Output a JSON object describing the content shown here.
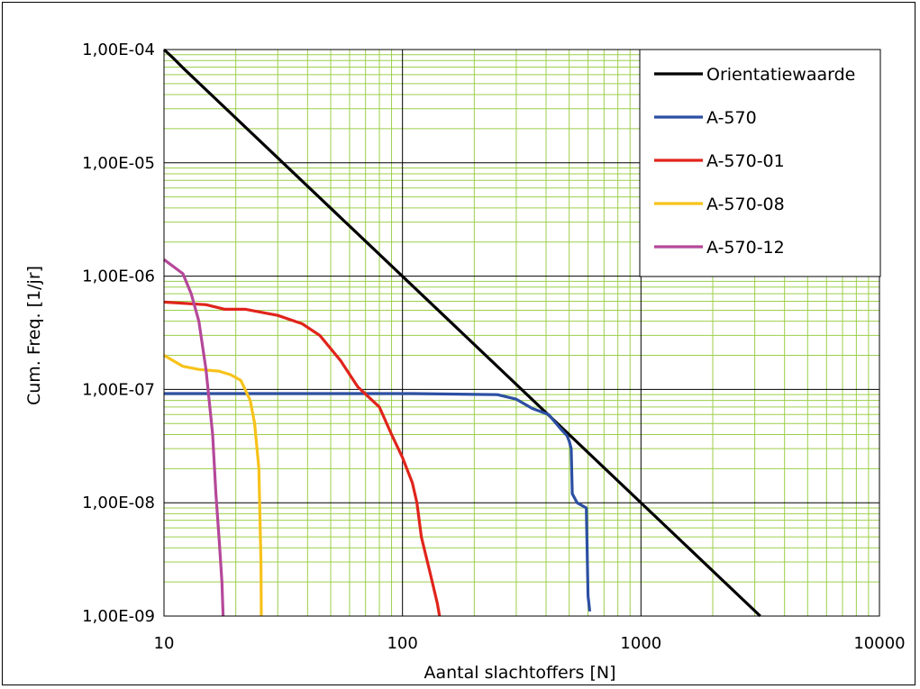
{
  "chart_data": {
    "type": "line",
    "title": "",
    "xlabel": "Aantal slachtoffers [N]",
    "ylabel": "Cum. Freq. [1/jr]",
    "xscale": "log",
    "yscale": "log",
    "xlim": [
      10,
      10000
    ],
    "ylim": [
      1e-09,
      0.0001
    ],
    "grid": true,
    "legend_position": "top-right",
    "x_ticks": [
      10,
      100,
      1000,
      10000
    ],
    "x_tick_labels": [
      "10",
      "100",
      "1000",
      "10000"
    ],
    "y_ticks": [
      0.0001,
      1e-05,
      1e-06,
      1e-07,
      1e-08,
      1e-09
    ],
    "y_tick_labels": [
      "1,00E-04",
      "1,00E-05",
      "1,00E-06",
      "1,00E-07",
      "1,00E-08",
      "1,00E-09"
    ],
    "series": [
      {
        "name": "Orientatiewaarde",
        "color": "#000000",
        "points": [
          [
            10,
            0.0001
          ],
          [
            11,
            8.3e-05
          ],
          [
            12,
            6.9e-05
          ],
          [
            3162,
            1e-09
          ]
        ]
      },
      {
        "name": "A-570",
        "color": "#2c4fa3",
        "points": [
          [
            10,
            9.2e-08
          ],
          [
            110,
            9.2e-08
          ],
          [
            250,
            9e-08
          ],
          [
            300,
            8.2e-08
          ],
          [
            350,
            6.8e-08
          ],
          [
            410,
            6e-08
          ],
          [
            460,
            4.5e-08
          ],
          [
            490,
            3.9e-08
          ],
          [
            500,
            3.5e-08
          ],
          [
            510,
            3e-08
          ],
          [
            515,
            1.2e-08
          ],
          [
            540,
            1e-08
          ],
          [
            590,
            9e-09
          ],
          [
            600,
            1.5e-09
          ],
          [
            610,
            1.1e-09
          ]
        ]
      },
      {
        "name": "A-570-01",
        "color": "#e0241b",
        "points": [
          [
            10,
            5.9e-07
          ],
          [
            15,
            5.6e-07
          ],
          [
            18,
            5.1e-07
          ],
          [
            22,
            5.1e-07
          ],
          [
            30,
            4.5e-07
          ],
          [
            38,
            3.8e-07
          ],
          [
            45,
            3e-07
          ],
          [
            55,
            1.8e-07
          ],
          [
            65,
            1.05e-07
          ],
          [
            80,
            7e-08
          ],
          [
            90,
            4e-08
          ],
          [
            100,
            2.5e-08
          ],
          [
            110,
            1.5e-08
          ],
          [
            115,
            1e-08
          ],
          [
            120,
            5e-09
          ],
          [
            130,
            2.5e-09
          ],
          [
            140,
            1.3e-09
          ],
          [
            143,
            1e-09
          ]
        ]
      },
      {
        "name": "A-570-08",
        "color": "#f7c21a",
        "points": [
          [
            10,
            2e-07
          ],
          [
            12,
            1.6e-07
          ],
          [
            14,
            1.5e-07
          ],
          [
            17,
            1.45e-07
          ],
          [
            19,
            1.35e-07
          ],
          [
            21,
            1.2e-07
          ],
          [
            23,
            8e-08
          ],
          [
            24,
            5e-08
          ],
          [
            25,
            2e-08
          ],
          [
            25.5,
            3e-09
          ],
          [
            25.6,
            1e-09
          ]
        ]
      },
      {
        "name": "A-570-12",
        "color": "#b5489a",
        "points": [
          [
            10,
            1.4e-06
          ],
          [
            12,
            1.05e-06
          ],
          [
            13,
            7e-07
          ],
          [
            14,
            4e-07
          ],
          [
            15,
            1.5e-07
          ],
          [
            16,
            4e-08
          ],
          [
            16.5,
            1.2e-08
          ],
          [
            17,
            5e-09
          ],
          [
            17.5,
            2e-09
          ],
          [
            17.7,
            1e-09
          ]
        ]
      }
    ]
  }
}
